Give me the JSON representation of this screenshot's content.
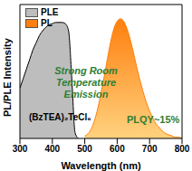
{
  "chart_data": {
    "type": "area",
    "xlabel": "Wavelength (nm)",
    "ylabel": "PL/PLE Intensity",
    "x": [
      300,
      310,
      320,
      330,
      340,
      350,
      360,
      370,
      380,
      390,
      400,
      410,
      420,
      430,
      440,
      450,
      460,
      470,
      480,
      490,
      500,
      510,
      520,
      530,
      540,
      550,
      560,
      570,
      580,
      590,
      600,
      610,
      620,
      630,
      640,
      650,
      660,
      670,
      680,
      690,
      700,
      710,
      720,
      730,
      740,
      750,
      760,
      770,
      780,
      790,
      800
    ],
    "series": [
      {
        "name": "PLE",
        "color": "#bdbdbd",
        "values": [
          0.42,
          0.5,
          0.58,
          0.66,
          0.74,
          0.8,
          0.86,
          0.9,
          0.93,
          0.95,
          0.96,
          0.97,
          0.97,
          0.97,
          0.96,
          0.9,
          0.5,
          0.05,
          0,
          null,
          null,
          null,
          null,
          null,
          null,
          null,
          null,
          null,
          null,
          null,
          null,
          null,
          null,
          null,
          null,
          null,
          null,
          null,
          null,
          null,
          null,
          null,
          null,
          null,
          null,
          null,
          null,
          null,
          null,
          null,
          null
        ]
      },
      {
        "name": "PL",
        "color": "#ff7f0e",
        "values": [
          null,
          null,
          null,
          null,
          null,
          null,
          null,
          null,
          null,
          null,
          null,
          null,
          null,
          null,
          null,
          null,
          null,
          null,
          null,
          null,
          0.02,
          0.04,
          0.08,
          0.15,
          0.25,
          0.38,
          0.52,
          0.67,
          0.81,
          0.92,
          0.98,
          1.0,
          0.98,
          0.92,
          0.83,
          0.72,
          0.6,
          0.49,
          0.39,
          0.3,
          0.23,
          0.17,
          0.12,
          0.09,
          0.06,
          0.04,
          0.03,
          0.02,
          0.01,
          0.01,
          0
        ]
      }
    ],
    "xlim": [
      300,
      800
    ],
    "xticks": [
      300,
      400,
      500,
      600,
      700,
      800
    ],
    "ylim": [
      0,
      1.12
    ],
    "tick_labels": "x",
    "legend": "upper left",
    "grid": false,
    "annotations": [
      "Strong Room Temperature Emission",
      "(BzTEA)₂TeCl₆",
      "PLQY~15%"
    ]
  }
}
